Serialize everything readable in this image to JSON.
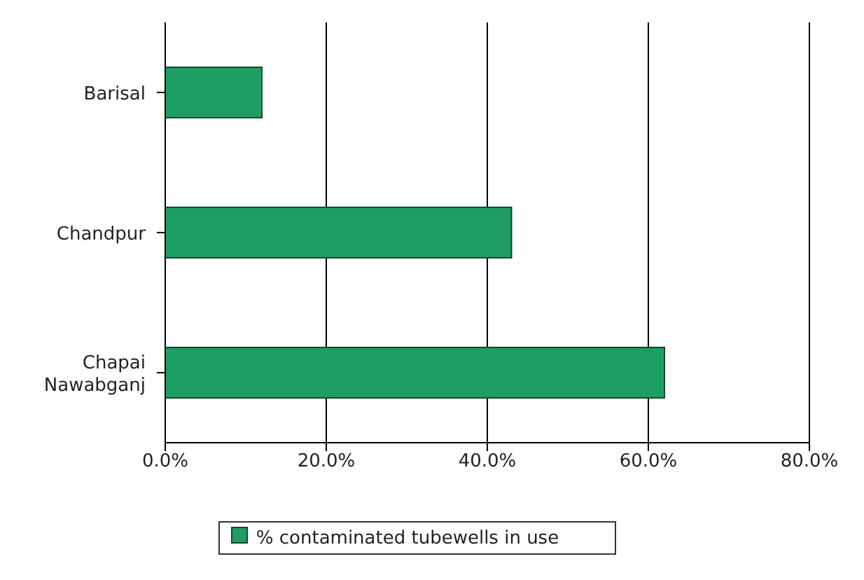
{
  "chart_data": {
    "type": "bar",
    "orientation": "horizontal",
    "categories": [
      "Barisal",
      "Chandpur",
      "Chapai Nawabganj"
    ],
    "series": [
      {
        "name": "% contaminated tubewells in use",
        "color": "#1f9e63",
        "values": [
          12,
          43,
          62
        ]
      }
    ],
    "xlim": [
      0,
      80
    ],
    "xticks": [
      {
        "value": 0,
        "label": "0.0%"
      },
      {
        "value": 20,
        "label": "20.0%"
      },
      {
        "value": 40,
        "label": "40.0%"
      },
      {
        "value": 60,
        "label": "60.0%"
      },
      {
        "value": 80,
        "label": "80.0%"
      }
    ],
    "grid": "x",
    "legend": "bottom"
  }
}
